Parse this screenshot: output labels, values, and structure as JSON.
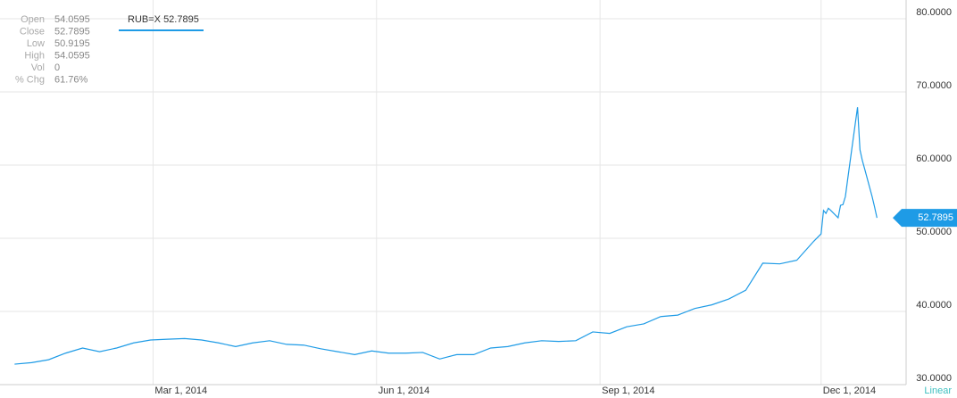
{
  "chart_data": {
    "type": "line",
    "info": [
      {
        "label": "Open",
        "value": "54.0595"
      },
      {
        "label": "Close",
        "value": "52.7895"
      },
      {
        "label": "Low",
        "value": "50.9195"
      },
      {
        "label": "High",
        "value": "54.0595"
      },
      {
        "label": "Vol",
        "value": "0"
      },
      {
        "label": "% Chg",
        "value": "61.76%"
      }
    ],
    "scale_label": "Linear",
    "x": [
      "2014-01-03",
      "2014-01-10",
      "2014-01-17",
      "2014-01-24",
      "2014-01-31",
      "2014-02-07",
      "2014-02-14",
      "2014-02-21",
      "2014-02-28",
      "2014-03-07",
      "2014-03-14",
      "2014-03-21",
      "2014-03-28",
      "2014-04-04",
      "2014-04-11",
      "2014-04-18",
      "2014-04-25",
      "2014-05-02",
      "2014-05-09",
      "2014-05-16",
      "2014-05-23",
      "2014-05-30",
      "2014-06-06",
      "2014-06-13",
      "2014-06-20",
      "2014-06-27",
      "2014-07-04",
      "2014-07-11",
      "2014-07-18",
      "2014-07-25",
      "2014-08-01",
      "2014-08-08",
      "2014-08-15",
      "2014-08-22",
      "2014-08-29",
      "2014-09-05",
      "2014-09-12",
      "2014-09-19",
      "2014-09-26",
      "2014-10-03",
      "2014-10-10",
      "2014-10-17",
      "2014-10-24",
      "2014-10-31",
      "2014-11-07",
      "2014-11-14",
      "2014-11-21",
      "2014-11-28",
      "2014-12-01",
      "2014-12-02",
      "2014-12-03",
      "2014-12-04",
      "2014-12-05",
      "2014-12-08",
      "2014-12-09",
      "2014-12-10",
      "2014-12-11",
      "2014-12-12",
      "2014-12-15",
      "2014-12-16",
      "2014-12-17",
      "2014-12-18",
      "2014-12-19",
      "2014-12-22",
      "2014-12-23",
      "2014-12-24"
    ],
    "series": [
      {
        "name": "RUB=X",
        "color": "#1e9be6",
        "values": [
          32.8,
          33.0,
          33.4,
          34.3,
          35.0,
          34.5,
          35.0,
          35.7,
          36.1,
          36.2,
          36.3,
          36.1,
          35.7,
          35.2,
          35.7,
          36.0,
          35.5,
          35.4,
          34.9,
          34.5,
          34.1,
          34.6,
          34.3,
          34.3,
          34.4,
          33.5,
          34.1,
          34.1,
          35.0,
          35.2,
          35.7,
          36.0,
          35.9,
          36.0,
          37.2,
          37.0,
          37.9,
          38.3,
          39.3,
          39.5,
          40.4,
          40.9,
          41.7,
          42.9,
          46.6,
          46.5,
          47.0,
          49.6,
          50.6,
          53.8,
          53.4,
          54.1,
          53.8,
          52.8,
          54.5,
          54.6,
          55.7,
          58.2,
          65.5,
          67.9,
          62.1,
          60.6,
          59.4,
          55.7,
          54.3,
          52.7895
        ]
      }
    ],
    "xlim": [
      "2013-12-28",
      "2015-01-05"
    ],
    "xticks": [
      {
        "value": "2014-03-01",
        "label": "Mar 1, 2014"
      },
      {
        "value": "2014-06-01",
        "label": "Jun 1, 2014"
      },
      {
        "value": "2014-09-01",
        "label": "Sep 1, 2014"
      },
      {
        "value": "2014-12-01",
        "label": "Dec 1, 2014"
      }
    ],
    "ylim": [
      30,
      82.56
    ],
    "yticks": [
      {
        "value": 30,
        "label": "30.0000"
      },
      {
        "value": 40,
        "label": "40.0000"
      },
      {
        "value": 50,
        "label": "50.0000"
      },
      {
        "value": 60,
        "label": "60.0000"
      },
      {
        "value": 70,
        "label": "70.0000"
      },
      {
        "value": 80,
        "label": "80.0000"
      }
    ],
    "grid": true
  }
}
